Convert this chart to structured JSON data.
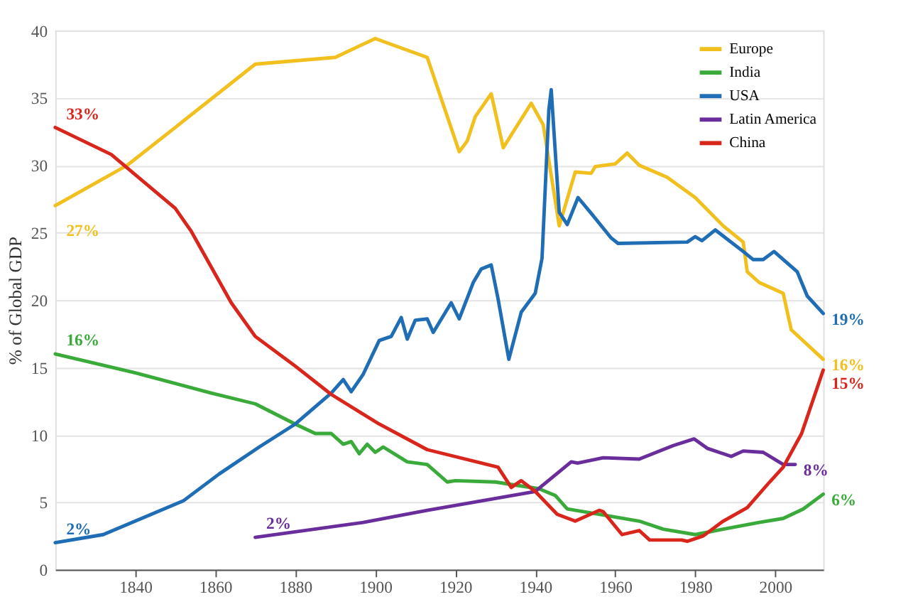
{
  "chart_data": {
    "type": "line",
    "ylabel": "% of Global GDP",
    "xlim": [
      1820,
      2012
    ],
    "xticks": [
      1840,
      1860,
      1880,
      1900,
      1920,
      1940,
      1960,
      1980,
      2000
    ],
    "ylim": [
      0,
      40
    ],
    "yticks": [
      0,
      5,
      10,
      15,
      20,
      25,
      30,
      35,
      40
    ],
    "grid": "y",
    "legend": "top right",
    "series": [
      {
        "name": "Europe",
        "color": "#f2c01e",
        "x": [
          1820,
          1838,
          1850,
          1870,
          1890,
          1900,
          1913,
          1917,
          1921,
          1923,
          1925,
          1929,
          1932,
          1939,
          1942,
          1946,
          1950,
          1954,
          1955,
          1960,
          1963,
          1966,
          1973,
          1980,
          1987,
          1992,
          1993,
          1996,
          2002,
          2004,
          2012
        ],
        "values": [
          27.0,
          30.0,
          32.8,
          37.5,
          38.0,
          39.4,
          38.0,
          34.5,
          31.0,
          31.8,
          33.6,
          35.3,
          31.3,
          34.6,
          33.0,
          25.5,
          29.5,
          29.4,
          29.9,
          30.1,
          30.9,
          30.0,
          29.1,
          27.6,
          25.5,
          24.3,
          22.1,
          21.3,
          20.5,
          17.8,
          15.6
        ],
        "value_labels": [
          "27%",
          null,
          null,
          null,
          null,
          null,
          null,
          null,
          null,
          null,
          null,
          null,
          null,
          null,
          null,
          null,
          null,
          null,
          null,
          null,
          null,
          null,
          null,
          null,
          null,
          null,
          null,
          null,
          null,
          null,
          "16%"
        ]
      },
      {
        "name": "India",
        "color": "#3aab3a",
        "x": [
          1820,
          1840,
          1859,
          1870,
          1880,
          1885,
          1889,
          1892,
          1894,
          1896,
          1898,
          1900,
          1902,
          1908,
          1913,
          1918,
          1920,
          1930,
          1941,
          1945,
          1948,
          1958,
          1966,
          1972,
          1980,
          1987,
          1996,
          2002,
          2007,
          2012
        ],
        "values": [
          16.0,
          14.6,
          13.1,
          12.3,
          10.8,
          10.1,
          10.1,
          9.3,
          9.5,
          8.6,
          9.3,
          8.7,
          9.1,
          8.0,
          7.8,
          6.5,
          6.6,
          6.5,
          6.0,
          5.5,
          4.5,
          4.0,
          3.6,
          3.0,
          2.6,
          3.0,
          3.5,
          3.8,
          4.5,
          5.6
        ],
        "value_labels": [
          "16%",
          null,
          null,
          null,
          null,
          null,
          null,
          null,
          null,
          null,
          null,
          null,
          null,
          null,
          null,
          null,
          null,
          null,
          null,
          null,
          null,
          null,
          null,
          null,
          null,
          null,
          null,
          null,
          null,
          "6%"
        ]
      },
      {
        "name": "USA",
        "color": "#1f6db5",
        "x": [
          1820,
          1832,
          1840,
          1852,
          1861,
          1871,
          1880,
          1889,
          1892,
          1894,
          1897,
          1901,
          1904,
          1906.5,
          1908,
          1910,
          1913,
          1914.5,
          1919,
          1921,
          1924.5,
          1926.5,
          1929,
          1930.7,
          1933.4,
          1936.5,
          1940,
          1941.7,
          1943.4,
          1944,
          1946,
          1948,
          1950.7,
          1953.8,
          1959,
          1960.7,
          1978,
          1980,
          1981.7,
          1985,
          1992,
          1994.5,
          1997,
          1999.7,
          2005.5,
          2008,
          2012
        ],
        "values": [
          2.0,
          2.6,
          3.6,
          5.1,
          7.1,
          9.1,
          10.8,
          13.1,
          14.1,
          13.2,
          14.5,
          17.0,
          17.3,
          18.7,
          17.1,
          18.5,
          18.6,
          17.6,
          19.8,
          18.6,
          21.3,
          22.3,
          22.6,
          20.1,
          15.6,
          19.1,
          20.5,
          23.1,
          34.1,
          35.6,
          26.5,
          25.6,
          27.6,
          26.5,
          24.6,
          24.2,
          24.3,
          24.7,
          24.4,
          25.2,
          23.6,
          23.0,
          23.0,
          23.6,
          22.1,
          20.3,
          19.0
        ],
        "value_labels": [
          "2%",
          null,
          null,
          null,
          null,
          null,
          null,
          null,
          null,
          null,
          null,
          null,
          null,
          null,
          null,
          null,
          null,
          null,
          null,
          null,
          null,
          null,
          null,
          null,
          null,
          null,
          null,
          null,
          null,
          null,
          null,
          null,
          null,
          null,
          null,
          null,
          null,
          null,
          null,
          null,
          null,
          null,
          null,
          null,
          null,
          null,
          "19%"
        ]
      },
      {
        "name": "Latin America",
        "color": "#6a2e9c",
        "x": [
          1870,
          1897,
          1913,
          1940,
          1949,
          1950.6,
          1957,
          1966,
          1974.5,
          1979.7,
          1983,
          1989,
          1992,
          1997,
          2002,
          2005
        ],
        "values": [
          2.4,
          3.5,
          4.4,
          5.8,
          8.0,
          7.9,
          8.3,
          8.2,
          9.2,
          9.7,
          9.0,
          8.4,
          8.8,
          8.7,
          7.8,
          7.8
        ],
        "value_labels": [
          "2%",
          null,
          null,
          null,
          null,
          null,
          null,
          null,
          null,
          null,
          null,
          null,
          null,
          null,
          null,
          "8%"
        ]
      },
      {
        "name": "China",
        "color": "#d9261c",
        "x": [
          1820,
          1834,
          1850,
          1854,
          1864,
          1870,
          1880,
          1889,
          1901,
          1913,
          1930.7,
          1934,
          1936.5,
          1940,
          1945.5,
          1950,
          1956,
          1957,
          1961.7,
          1966,
          1968.6,
          1976.6,
          1978,
          1982,
          1987,
          1993,
          1998.6,
          2002,
          2006.6,
          2012
        ],
        "values": [
          32.8,
          30.8,
          26.8,
          25.1,
          19.8,
          17.3,
          15.1,
          13.0,
          10.8,
          8.9,
          7.6,
          6.1,
          6.6,
          5.8,
          4.1,
          3.6,
          4.4,
          4.3,
          2.6,
          2.9,
          2.2,
          2.2,
          2.1,
          2.5,
          3.6,
          4.6,
          6.5,
          7.6,
          10.1,
          14.8
        ],
        "value_labels": [
          "33%",
          null,
          null,
          null,
          null,
          null,
          null,
          null,
          null,
          null,
          null,
          null,
          null,
          null,
          null,
          null,
          null,
          null,
          null,
          null,
          null,
          null,
          null,
          null,
          null,
          null,
          null,
          null,
          null,
          "15%"
        ]
      }
    ]
  }
}
